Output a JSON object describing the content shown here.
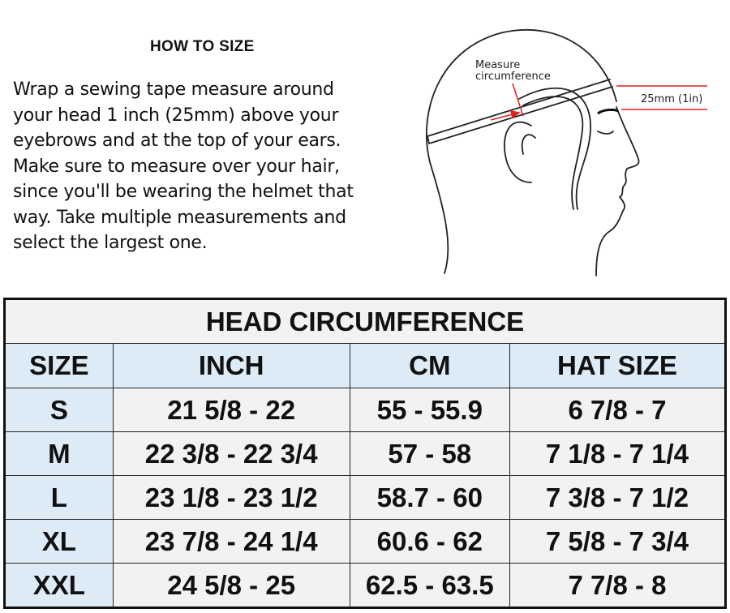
{
  "instructions": {
    "heading": "HOW TO SIZE",
    "lines": [
      "Wrap a sewing tape measure around",
      "your head 1 inch (25mm) above your",
      "eyebrows and at the top of your ears.",
      "Make sure to measure over your hair,",
      "since you'll be wearing the helmet that",
      "way. Take multiple measurements and",
      "select the largest one."
    ]
  },
  "diagram": {
    "label_measure_1": "Measure",
    "label_measure_2": "circumference",
    "label_offset": "25mm (1in)",
    "accent_color": "#e0201b"
  },
  "table": {
    "title": "HEAD CIRCUMFERENCE",
    "headers": [
      "SIZE",
      "INCH",
      "CM",
      "HAT SIZE"
    ],
    "rows": [
      [
        "S",
        "21 5/8 - 22",
        "55 - 55.9",
        "6 7/8 - 7"
      ],
      [
        "M",
        "22 3/8 - 22 3/4",
        "57 - 58",
        "7 1/8 - 7 1/4"
      ],
      [
        "L",
        "23 1/8 - 23 1/2",
        "58.7 - 60",
        "7 3/8 - 7 1/2"
      ],
      [
        "XL",
        "23 7/8 - 24 1/4",
        "60.6 - 62",
        "7 5/8 - 7 3/4"
      ],
      [
        "XXL",
        "24 5/8 - 25",
        "62.5 - 63.5",
        "7 7/8 - 8"
      ]
    ],
    "header_bg": "#ddebf7",
    "cell_bg": "#f2f2f2"
  }
}
